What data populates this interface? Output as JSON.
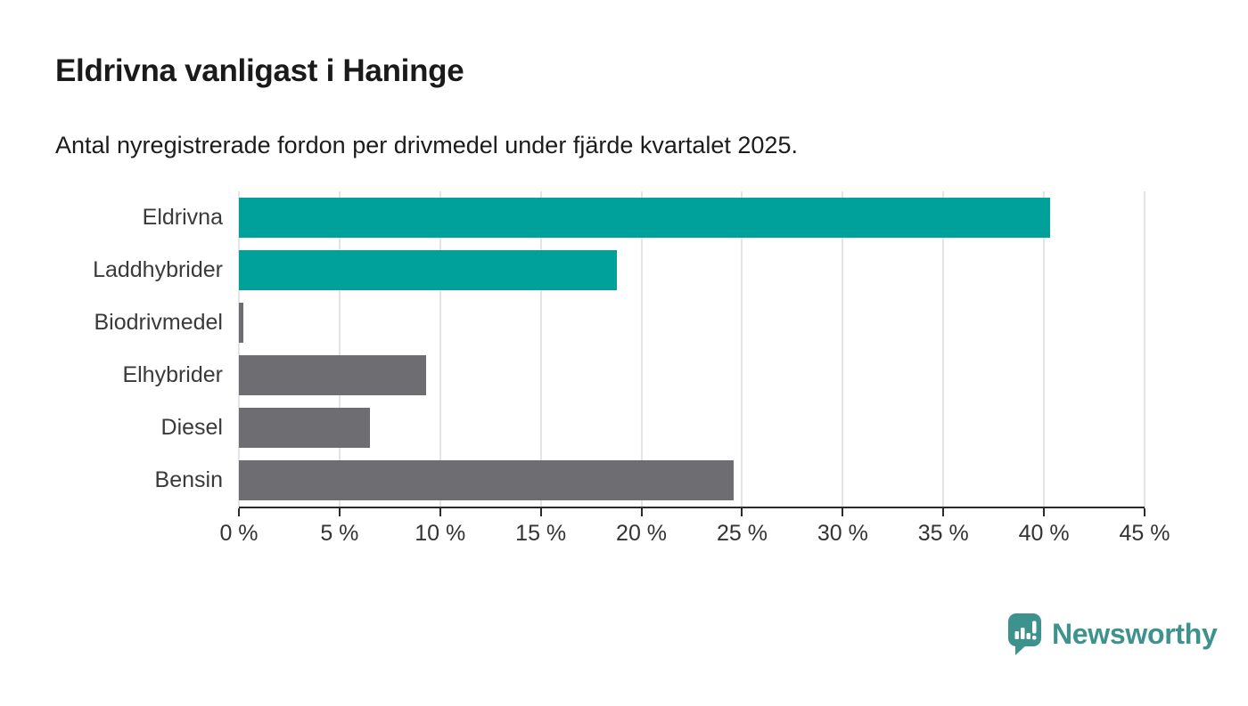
{
  "header": {
    "title": "Eldrivna vanligast i Haninge",
    "subtitle": "Antal nyregistrerade fordon per drivmedel under fjärde kvartalet 2025."
  },
  "chart_data": {
    "type": "bar",
    "orientation": "horizontal",
    "categories": [
      "Eldrivna",
      "Laddhybrider",
      "Biodrivmedel",
      "Elhybrider",
      "Diesel",
      "Bensin"
    ],
    "values": [
      40.3,
      18.8,
      0.2,
      9.3,
      6.5,
      24.6
    ],
    "unit": "%",
    "bar_colors": [
      "#00a19a",
      "#00a19a",
      "#6d6d72",
      "#6d6d72",
      "#6d6d72",
      "#6d6d72"
    ],
    "xlim": [
      0,
      45
    ],
    "x_ticks": [
      0,
      5,
      10,
      15,
      20,
      25,
      30,
      35,
      40,
      45
    ],
    "x_tick_labels": [
      "0 %",
      "5 %",
      "10 %",
      "15 %",
      "20 %",
      "25 %",
      "30 %",
      "35 %",
      "40 %",
      "45 %"
    ],
    "grid": true,
    "xlabel": "",
    "ylabel": "",
    "legend": "none"
  },
  "colors": {
    "accent_teal": "#00a19a",
    "bar_gray": "#6d6d72",
    "grid": "#e4e4e4",
    "axis": "#2b2b2b",
    "logo_teal": "#3e928e"
  },
  "branding": {
    "logo_text": "Newsworthy",
    "logo_icon": "bar-chart-speech-bubble-icon"
  }
}
